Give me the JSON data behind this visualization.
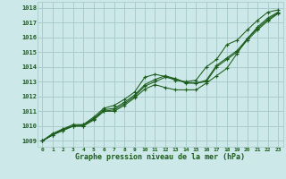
{
  "bg_color": "#cde8e8",
  "grid_color": "#aacccc",
  "line_color": "#1a5c1a",
  "marker_color": "#1a5c1a",
  "xlabel": "Graphe pression niveau de la mer (hPa)",
  "xlabel_color": "#1a5c1a",
  "ylabel_values": [
    1009,
    1010,
    1011,
    1012,
    1013,
    1014,
    1015,
    1016,
    1017,
    1018
  ],
  "xlim": [
    -0.5,
    23.5
  ],
  "ylim": [
    1008.6,
    1018.4
  ],
  "series": [
    {
      "x": [
        0,
        1,
        2,
        3,
        4,
        5,
        6,
        7,
        8,
        9,
        10,
        11,
        12,
        13,
        14,
        15,
        16,
        17,
        18,
        19,
        20,
        21,
        22,
        23
      ],
      "y": [
        1009.0,
        1009.4,
        1009.7,
        1010.0,
        1010.0,
        1010.5,
        1011.0,
        1011.1,
        1011.5,
        1012.0,
        1012.7,
        1013.0,
        1013.3,
        1013.2,
        1012.9,
        1012.9,
        1013.0,
        1014.0,
        1014.5,
        1015.0,
        1015.8,
        1016.5,
        1017.1,
        1017.6
      ]
    },
    {
      "x": [
        0,
        1,
        2,
        3,
        4,
        5,
        6,
        7,
        8,
        9,
        10,
        11,
        12,
        13,
        14,
        15,
        16,
        17,
        18,
        19,
        20,
        21,
        22,
        23
      ],
      "y": [
        1009.0,
        1009.4,
        1009.8,
        1010.0,
        1010.1,
        1010.5,
        1011.1,
        1011.2,
        1011.6,
        1012.1,
        1012.8,
        1013.15,
        1013.4,
        1013.2,
        1012.95,
        1012.9,
        1013.1,
        1014.1,
        1014.6,
        1015.1,
        1015.9,
        1016.6,
        1017.2,
        1017.65
      ]
    },
    {
      "x": [
        0,
        1,
        2,
        3,
        4,
        5,
        6,
        7,
        8,
        9,
        10,
        11,
        12,
        13,
        14,
        15,
        16,
        17,
        18,
        19,
        20,
        21,
        22,
        23
      ],
      "y": [
        1009.0,
        1009.5,
        1009.8,
        1010.1,
        1010.1,
        1010.6,
        1011.2,
        1011.4,
        1011.8,
        1012.3,
        1013.3,
        1013.5,
        1013.35,
        1013.1,
        1013.0,
        1013.1,
        1014.0,
        1014.5,
        1015.5,
        1015.8,
        1016.5,
        1017.15,
        1017.7,
        1017.85
      ]
    },
    {
      "x": [
        0,
        1,
        2,
        3,
        4,
        5,
        6,
        7,
        8,
        9,
        10,
        11,
        12,
        13,
        14,
        15,
        16,
        17,
        18,
        19,
        20,
        21,
        22,
        23
      ],
      "y": [
        1009.0,
        1009.4,
        1009.7,
        1010.0,
        1010.0,
        1010.4,
        1011.0,
        1011.0,
        1011.4,
        1011.9,
        1012.5,
        1012.8,
        1012.6,
        1012.45,
        1012.45,
        1012.45,
        1012.9,
        1013.4,
        1013.9,
        1014.9,
        1015.9,
        1016.7,
        1017.3,
        1017.7
      ]
    }
  ],
  "figsize": [
    3.2,
    2.0
  ],
  "dpi": 100
}
